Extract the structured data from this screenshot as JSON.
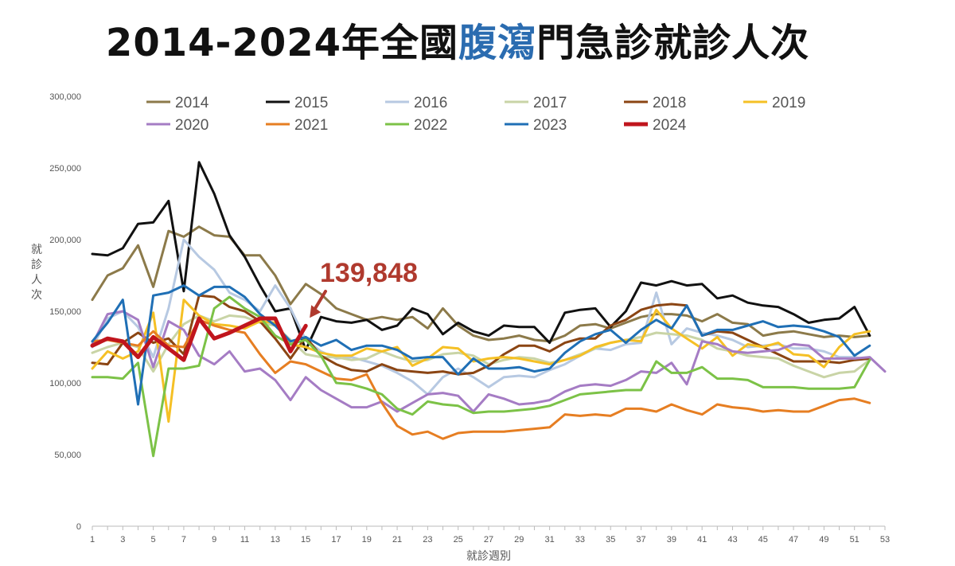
{
  "title": {
    "prefix": "2014-2024年全國",
    "highlight": "腹瀉",
    "suffix": "門急診就診人次"
  },
  "chart_data": {
    "type": "line",
    "xlabel": "就診週別",
    "ylabel": "就診人次",
    "xlim": [
      1,
      53
    ],
    "ylim": [
      0,
      300000
    ],
    "x_ticks": [
      1,
      3,
      5,
      7,
      9,
      11,
      13,
      15,
      17,
      19,
      21,
      23,
      25,
      27,
      29,
      31,
      33,
      35,
      37,
      39,
      41,
      43,
      45,
      47,
      49,
      51,
      53
    ],
    "y_ticks": [
      0,
      50000,
      100000,
      150000,
      200000,
      250000,
      300000
    ],
    "y_tick_labels": [
      "0",
      "50,000",
      "100,000",
      "150,000",
      "200,000",
      "250,000",
      "300,000"
    ],
    "legend_position": "top",
    "annotation": {
      "text": "139,848",
      "week": 15,
      "value": 139848,
      "color": "#b03a2e"
    },
    "series": [
      {
        "name": "2014",
        "color": "#8c7a4a",
        "width": 3,
        "values": [
          158000,
          175000,
          180000,
          196000,
          167000,
          206000,
          202000,
          209000,
          203000,
          202000,
          189000,
          189000,
          175000,
          155000,
          169000,
          162000,
          152000,
          148000,
          144000,
          146000,
          144000,
          146000,
          138000,
          152000,
          140000,
          133000,
          130000,
          131000,
          133000,
          130000,
          129000,
          133000,
          140000,
          141000,
          138000,
          142000,
          146000,
          148000,
          148000,
          147000,
          143000,
          148000,
          142000,
          141000,
          133000,
          135000,
          136000,
          134000,
          132000,
          133000,
          132000,
          133000
        ]
      },
      {
        "name": "2015",
        "color": "#111111",
        "width": 3,
        "values": [
          190000,
          189000,
          194000,
          211000,
          212000,
          227000,
          164000,
          254000,
          232000,
          203000,
          188000,
          168000,
          150000,
          152000,
          123000,
          146000,
          143000,
          142000,
          144000,
          137000,
          140000,
          152000,
          148000,
          134000,
          142000,
          136000,
          133000,
          140000,
          139000,
          139000,
          128000,
          149000,
          151000,
          152000,
          139000,
          150000,
          170000,
          168000,
          171000,
          168000,
          169000,
          159000,
          161000,
          156000,
          154000,
          153000,
          148000,
          142000,
          144000,
          145000,
          153000,
          133000
        ]
      },
      {
        "name": "2016",
        "color": "#b7c9e2",
        "width": 3,
        "values": [
          125000,
          145000,
          150000,
          139000,
          118000,
          152000,
          200000,
          188000,
          179000,
          163000,
          158000,
          150000,
          168000,
          152000,
          130000,
          122000,
          117000,
          118000,
          115000,
          112000,
          107000,
          101000,
          92000,
          104000,
          110000,
          104000,
          97000,
          104000,
          105000,
          104000,
          109000,
          113000,
          119000,
          124000,
          123000,
          127000,
          128000,
          163000,
          127000,
          138000,
          135000,
          133000,
          130000,
          125000,
          126000,
          127000,
          124000,
          124000,
          122000,
          118000,
          118000,
          116000
        ]
      },
      {
        "name": "2017",
        "color": "#c9d4a6",
        "width": 3,
        "values": [
          121000,
          125000,
          128000,
          125000,
          108000,
          127000,
          141000,
          147000,
          143000,
          147000,
          146000,
          142000,
          140000,
          130000,
          120000,
          118000,
          118000,
          116000,
          117000,
          122000,
          118000,
          115000,
          116000,
          120000,
          121000,
          119000,
          113000,
          116000,
          118000,
          117000,
          114000,
          116000,
          120000,
          124000,
          128000,
          130000,
          132000,
          135000,
          134000,
          133000,
          130000,
          124000,
          122000,
          119000,
          118000,
          117000,
          112000,
          108000,
          104000,
          107000,
          108000,
          116000
        ]
      },
      {
        "name": "2018",
        "color": "#8b4513",
        "width": 3,
        "values": [
          114000,
          113000,
          128000,
          135000,
          128000,
          131000,
          120000,
          161000,
          160000,
          153000,
          150000,
          143000,
          131000,
          117000,
          132000,
          119000,
          113000,
          109000,
          108000,
          113000,
          109000,
          108000,
          107000,
          108000,
          106000,
          107000,
          112000,
          120000,
          126000,
          126000,
          122000,
          128000,
          131000,
          131000,
          140000,
          144000,
          151000,
          154000,
          155000,
          154000,
          133000,
          136000,
          135000,
          130000,
          125000,
          120000,
          115000,
          115000,
          115000,
          114000,
          116000,
          117000
        ]
      },
      {
        "name": "2019",
        "color": "#f5c025",
        "width": 3,
        "values": [
          110000,
          122000,
          117000,
          122000,
          149000,
          73000,
          158000,
          147000,
          141000,
          140000,
          138000,
          143000,
          142000,
          127000,
          125000,
          121000,
          119000,
          119000,
          124000,
          122000,
          125000,
          112000,
          117000,
          125000,
          124000,
          115000,
          117000,
          118000,
          117000,
          115000,
          113000,
          116000,
          119000,
          125000,
          128000,
          130000,
          129000,
          151000,
          138000,
          131000,
          124000,
          132000,
          119000,
          127000,
          125000,
          128000,
          120000,
          119000,
          111000,
          125000,
          134000,
          136000
        ]
      },
      {
        "name": "2020",
        "color": "#a57cc4",
        "width": 3,
        "values": [
          127000,
          148000,
          150000,
          144000,
          111000,
          143000,
          137000,
          119000,
          113000,
          122000,
          108000,
          110000,
          102000,
          88000,
          104000,
          95000,
          89000,
          83000,
          83000,
          87000,
          80000,
          86000,
          92000,
          93000,
          91000,
          80000,
          92000,
          89000,
          85000,
          86000,
          88000,
          94000,
          98000,
          99000,
          98000,
          102000,
          108000,
          107000,
          114000,
          99000,
          129000,
          127000,
          122000,
          121000,
          122000,
          123000,
          127000,
          126000,
          117000,
          117000,
          117000,
          118000,
          108000
        ]
      },
      {
        "name": "2021",
        "color": "#e67e22",
        "width": 3,
        "values": [
          129000,
          130000,
          128000,
          126000,
          136000,
          126000,
          125000,
          144000,
          140000,
          137000,
          135000,
          120000,
          107000,
          115000,
          113000,
          108000,
          103000,
          102000,
          106000,
          86000,
          70000,
          64000,
          66000,
          61000,
          65000,
          66000,
          66000,
          66000,
          67000,
          68000,
          69000,
          78000,
          77000,
          78000,
          77000,
          82000,
          82000,
          80000,
          85000,
          81000,
          78000,
          85000,
          83000,
          82000,
          80000,
          81000,
          80000,
          80000,
          84000,
          88000,
          89000,
          86000
        ]
      },
      {
        "name": "2022",
        "color": "#7cc247",
        "width": 3,
        "values": [
          104000,
          104000,
          103000,
          114000,
          49000,
          110000,
          110000,
          112000,
          152000,
          160000,
          152000,
          146000,
          133000,
          127000,
          130000,
          119000,
          100000,
          99000,
          96000,
          92000,
          82000,
          78000,
          87000,
          85000,
          84000,
          79000,
          80000,
          80000,
          81000,
          82000,
          84000,
          88000,
          92000,
          93000,
          94000,
          95000,
          95000,
          115000,
          107000,
          107000,
          111000,
          103000,
          103000,
          102000,
          97000,
          97000,
          97000,
          96000,
          96000,
          96000,
          97000,
          116000
        ]
      },
      {
        "name": "2023",
        "color": "#1f6fb5",
        "width": 3,
        "values": [
          129000,
          142000,
          158000,
          85000,
          161000,
          163000,
          168000,
          161000,
          167000,
          167000,
          160000,
          148000,
          140000,
          129000,
          132000,
          126000,
          130000,
          123000,
          126000,
          126000,
          123000,
          117000,
          118000,
          118000,
          106000,
          117000,
          110000,
          110000,
          111000,
          108000,
          110000,
          121000,
          129000,
          134000,
          137000,
          128000,
          137000,
          144000,
          138000,
          154000,
          133000,
          137000,
          137000,
          140000,
          143000,
          139000,
          140000,
          139000,
          136000,
          132000,
          119000,
          126000
        ]
      },
      {
        "name": "2024",
        "color": "#c0151d",
        "width": 5,
        "values": [
          126000,
          131000,
          129000,
          118000,
          132000,
          124000,
          116000,
          145000,
          131000,
          135000,
          140000,
          145000,
          145000,
          122000,
          139848
        ]
      }
    ]
  }
}
